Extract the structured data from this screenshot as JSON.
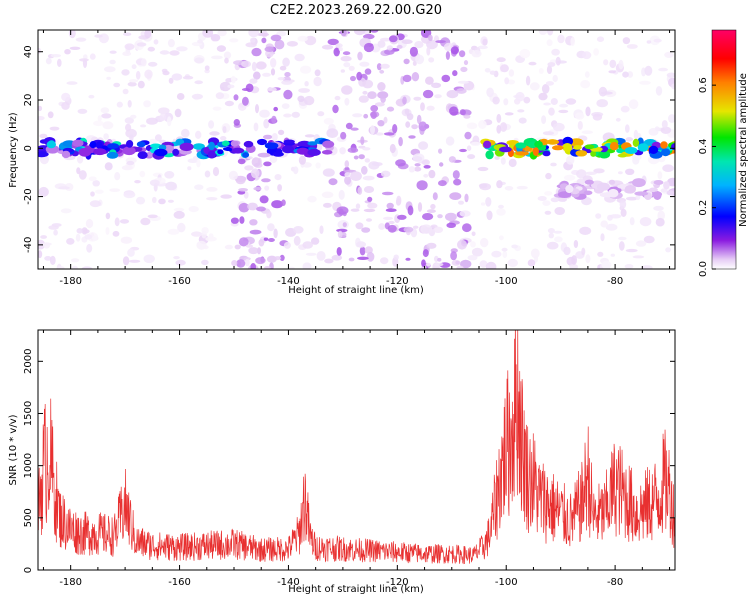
{
  "title": "C2E2.2023.269.22.00.G20",
  "chart_data": [
    {
      "type": "heatmap",
      "xlabel": "Height of straight line (km)",
      "ylabel": "Frequency (Hz)",
      "xlim": [
        -186,
        -69
      ],
      "ylim": [
        -50,
        49
      ],
      "xticks": [
        -180,
        -160,
        -140,
        -120,
        -100,
        -80
      ],
      "yticks": [
        -40,
        -20,
        0,
        20,
        40
      ],
      "colorbar": {
        "label": "Normalized spectral amplitude",
        "range": [
          0,
          0.78
        ],
        "ticks": [
          0.0,
          0.2,
          0.4,
          0.6
        ],
        "tick_labels": [
          "0.0",
          "0.2",
          "0.4",
          "0.6"
        ],
        "colormap": [
          "#ffffff",
          "#e6ccf5",
          "#8a1be0",
          "#0000ff",
          "#00e6e6",
          "#00e600",
          "#e6e600",
          "#ff8000",
          "#ff0000",
          "#ff0066"
        ]
      },
      "features": [
        {
          "label": "main band",
          "x_range": [
            -186,
            -147
          ],
          "frequency": 0,
          "amplitude": 0.3
        },
        {
          "label": "main band",
          "x_range": [
            -145,
            -132
          ],
          "frequency": 0,
          "amplitude": 0.25
        },
        {
          "label": "main band",
          "x_range": [
            -105,
            -69
          ],
          "frequency": 0,
          "amplitude": 0.5
        },
        {
          "label": "lower band",
          "x_range": [
            -90,
            -69
          ],
          "frequency": -17,
          "amplitude": 0.1
        }
      ]
    },
    {
      "type": "line",
      "xlabel": "Height of straight line (km)",
      "ylabel": "SNR (10 * v/v)",
      "xlim": [
        -186,
        -69
      ],
      "ylim": [
        0,
        2300
      ],
      "xticks": [
        -180,
        -160,
        -140,
        -120,
        -100,
        -80
      ],
      "yticks": [
        0,
        500,
        1000,
        1500,
        2000
      ],
      "color": "#e83030",
      "series": [
        {
          "x": [
            -186,
            -185,
            -184,
            -183,
            -182,
            -180,
            -178,
            -175,
            -172,
            -170,
            -168,
            -165,
            -160,
            -155,
            -150,
            -145,
            -140,
            -138,
            -137,
            -136,
            -135,
            -130,
            -125,
            -120,
            -115,
            -110,
            -106,
            -104,
            -103,
            -102,
            -101,
            -100,
            -99,
            -98,
            -97,
            -96,
            -95,
            -94,
            -92,
            -90,
            -88,
            -86,
            -85,
            -84,
            -82,
            -80,
            -78,
            -76,
            -74,
            -72,
            -71,
            -70,
            -69
          ],
          "y": [
            700,
            1250,
            1500,
            1000,
            650,
            500,
            450,
            450,
            420,
            800,
            350,
            300,
            280,
            300,
            320,
            250,
            260,
            450,
            900,
            400,
            280,
            260,
            240,
            220,
            200,
            200,
            180,
            300,
            450,
            800,
            1200,
            1500,
            1700,
            2250,
            1500,
            1150,
            1100,
            900,
            800,
            700,
            600,
            850,
            1200,
            650,
            700,
            1050,
            900,
            700,
            800,
            900,
            1100,
            1000,
            600
          ]
        }
      ]
    }
  ]
}
